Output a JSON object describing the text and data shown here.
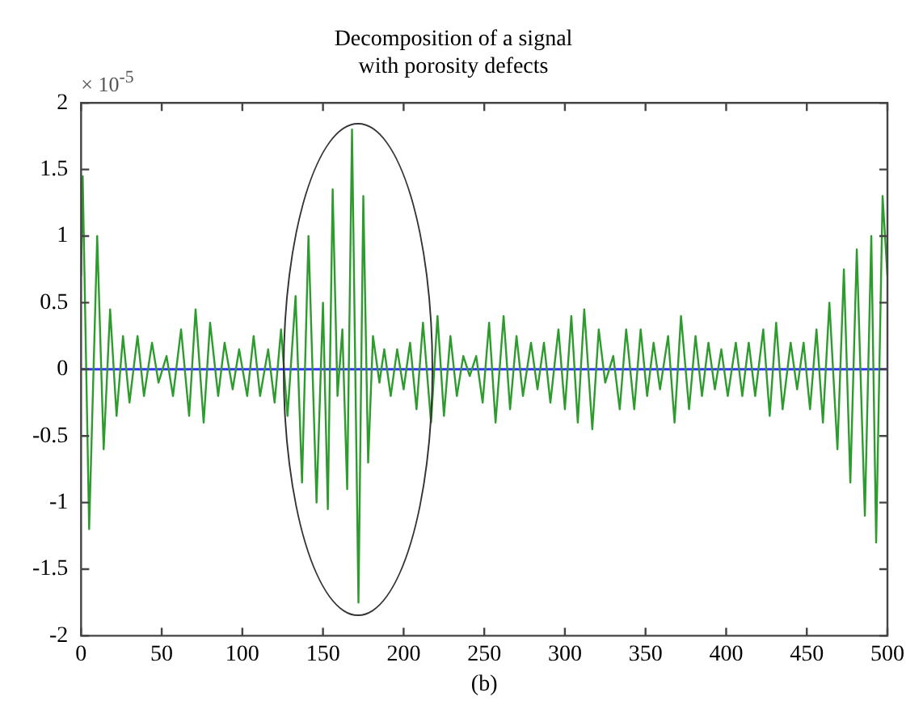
{
  "chart_data": {
    "type": "line",
    "title": "Decomposition of a signal\nwith porosity defects",
    "annotations": [
      "× 10$^{-5}$",
      "(b)"
    ],
    "series": [
      {
        "color": "#2e9b2e",
        "x": [
          0,
          1,
          5,
          10,
          14,
          18,
          22,
          26,
          30,
          35,
          39,
          44,
          48,
          53,
          57,
          62,
          67,
          71,
          76,
          80,
          85,
          89,
          94,
          98,
          103,
          107,
          111,
          116,
          120,
          124,
          128,
          133,
          137,
          141,
          146,
          150,
          153,
          156,
          159,
          162,
          165,
          168,
          172,
          175,
          178,
          181,
          185,
          188,
          192,
          196,
          200,
          204,
          208,
          212,
          217,
          221,
          225,
          229,
          233,
          237,
          241,
          245,
          249,
          253,
          257,
          262,
          266,
          270,
          274,
          279,
          283,
          287,
          291,
          296,
          300,
          304,
          308,
          312,
          317,
          321,
          325,
          330,
          334,
          338,
          343,
          347,
          351,
          355,
          359,
          364,
          368,
          372,
          377,
          381,
          385,
          389,
          393,
          397,
          401,
          406,
          410,
          414,
          418,
          423,
          427,
          431,
          435,
          440,
          444,
          448,
          452,
          456,
          460,
          464,
          469,
          473,
          477,
          481,
          486,
          490,
          493,
          497,
          500
        ],
        "values": [
          0.7,
          1.45,
          -1.2,
          1.0,
          -0.6,
          0.45,
          -0.35,
          0.25,
          -0.25,
          0.25,
          -0.2,
          0.2,
          -0.1,
          0.1,
          -0.2,
          0.3,
          -0.35,
          0.45,
          -0.4,
          0.35,
          -0.2,
          0.2,
          -0.15,
          0.15,
          -0.2,
          0.25,
          -0.2,
          0.15,
          -0.25,
          0.3,
          -0.35,
          0.55,
          -0.85,
          1.0,
          -1.0,
          0.5,
          -1.05,
          1.35,
          -0.2,
          0.3,
          -0.9,
          1.8,
          -1.75,
          1.3,
          -0.7,
          0.25,
          -0.1,
          0.15,
          -0.2,
          0.15,
          -0.15,
          0.2,
          -0.3,
          0.35,
          -0.4,
          0.4,
          -0.35,
          0.25,
          -0.2,
          0.1,
          -0.05,
          0.1,
          -0.25,
          0.35,
          -0.4,
          0.4,
          -0.3,
          0.25,
          -0.2,
          0.2,
          -0.15,
          0.2,
          -0.25,
          0.3,
          -0.3,
          0.4,
          -0.4,
          0.45,
          -0.45,
          0.3,
          -0.1,
          0.1,
          -0.3,
          0.3,
          -0.3,
          0.3,
          -0.2,
          0.2,
          -0.15,
          0.25,
          -0.4,
          0.4,
          -0.3,
          0.25,
          -0.2,
          0.2,
          -0.15,
          0.15,
          -0.2,
          0.2,
          -0.2,
          0.2,
          -0.2,
          0.3,
          -0.35,
          0.35,
          -0.3,
          0.2,
          -0.15,
          0.2,
          -0.3,
          0.3,
          -0.4,
          0.5,
          -0.6,
          0.75,
          -0.85,
          0.9,
          -1.1,
          1.0,
          -1.3,
          1.3,
          0.7
        ]
      }
    ],
    "ref_lines": [
      {
        "axis": "y",
        "value": 0,
        "color": "#3333ff"
      }
    ],
    "xlim": [
      0,
      500
    ],
    "xticks": [
      0,
      50,
      100,
      150,
      200,
      250,
      300,
      350,
      400,
      450,
      500
    ],
    "ylim": [
      -2,
      2
    ],
    "yticks": [
      -2,
      -1.5,
      -1,
      -0.5,
      0,
      0.5,
      1,
      1.5,
      2
    ],
    "grid": false,
    "legend": false,
    "marker": "none",
    "line_style": "solid"
  }
}
